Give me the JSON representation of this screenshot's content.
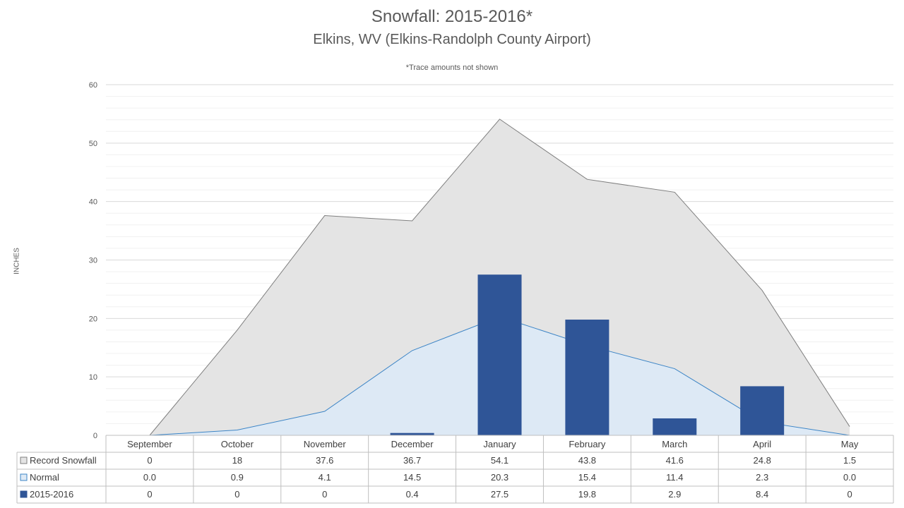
{
  "chart_data": {
    "type": "bar",
    "title": "Snowfall: 2015-2016*",
    "subtitle": "Elkins, WV (Elkins-Randolph County Airport)",
    "annotation": "*Trace amounts not shown",
    "ylabel": "INCHES",
    "ylim": [
      0,
      60
    ],
    "yticks": [
      0,
      10,
      20,
      30,
      40,
      50,
      60
    ],
    "grid": true,
    "legend_placement": "data-table-left",
    "categories": [
      "September",
      "October",
      "November",
      "December",
      "January",
      "February",
      "March",
      "April",
      "May"
    ],
    "series": [
      {
        "name": "Record Snowfall",
        "render": "area",
        "color": "#e4e4e4",
        "stroke": "#7f7f7f",
        "values": [
          0,
          18,
          37.6,
          36.7,
          54.1,
          43.8,
          41.6,
          24.8,
          1.5
        ],
        "labels": [
          "0",
          "18",
          "37.6",
          "36.7",
          "54.1",
          "43.8",
          "41.6",
          "24.8",
          "1.5"
        ]
      },
      {
        "name": "Normal",
        "render": "area",
        "color": "#dde9f5",
        "stroke": "#3d85c6",
        "values": [
          0.0,
          0.9,
          4.1,
          14.5,
          20.3,
          15.4,
          11.4,
          2.3,
          0.0
        ],
        "labels": [
          "0.0",
          "0.9",
          "4.1",
          "14.5",
          "20.3",
          "15.4",
          "11.4",
          "2.3",
          "0.0"
        ]
      },
      {
        "name": "2015-2016",
        "render": "bar",
        "color": "#2f5597",
        "values": [
          0,
          0,
          0,
          0.4,
          27.5,
          19.8,
          2.9,
          8.4,
          0
        ],
        "labels": [
          "0",
          "0",
          "0",
          "0.4",
          "27.5",
          "19.8",
          "2.9",
          "8.4",
          "0"
        ]
      }
    ]
  }
}
